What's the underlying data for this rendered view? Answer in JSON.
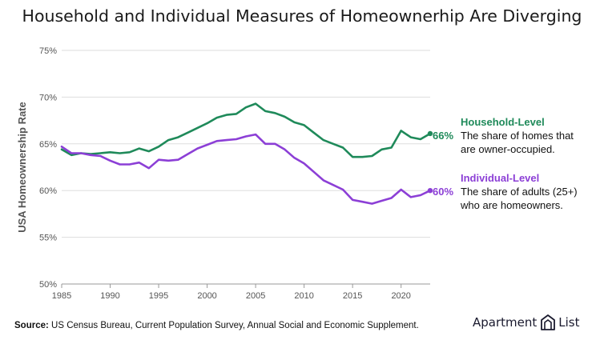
{
  "title": "Household and Individual Measures of Homeownerhip Are Diverging",
  "source": {
    "label": "Source:",
    "text": " US Census Bureau, Current Population Survey, Annual Social and Economic Supplement."
  },
  "brand": {
    "left": "Apartment",
    "right": "List",
    "icon": "building-outline-icon"
  },
  "colors": {
    "household": "#1f8a5a",
    "individual": "#8c3fd6",
    "grid": "#dddddd",
    "axis": "#555555"
  },
  "chart_data": {
    "type": "line",
    "ylabel": "USA Homeownership Rate",
    "xlabel": "",
    "xlim": [
      1985,
      2023
    ],
    "ylim": [
      50,
      75
    ],
    "xticks": [
      1985,
      1990,
      1995,
      2000,
      2005,
      2010,
      2015,
      2020
    ],
    "yticks": [
      50,
      55,
      60,
      65,
      70,
      75
    ],
    "ytick_labels": [
      "50%",
      "55%",
      "60%",
      "65%",
      "70%",
      "75%"
    ],
    "grid": "horizontal",
    "x": [
      1985,
      1986,
      1987,
      1988,
      1989,
      1990,
      1991,
      1992,
      1993,
      1994,
      1995,
      1996,
      1997,
      1998,
      1999,
      2000,
      2001,
      2002,
      2003,
      2004,
      2005,
      2006,
      2007,
      2008,
      2009,
      2010,
      2011,
      2012,
      2013,
      2014,
      2015,
      2016,
      2017,
      2018,
      2019,
      2020,
      2021,
      2022,
      2023
    ],
    "series": [
      {
        "name": "Household-Level",
        "values": [
          64.4,
          63.8,
          64.0,
          63.9,
          64.0,
          64.1,
          64.0,
          64.1,
          64.5,
          64.2,
          64.7,
          65.4,
          65.7,
          66.2,
          66.7,
          67.2,
          67.8,
          68.1,
          68.2,
          68.9,
          69.3,
          68.5,
          68.3,
          67.9,
          67.3,
          67.0,
          66.2,
          65.4,
          65.0,
          64.6,
          63.6,
          63.6,
          63.7,
          64.4,
          64.6,
          66.4,
          65.7,
          65.5,
          66.1
        ],
        "end_label": "66%",
        "description": "The share of homes that are owner-occupied."
      },
      {
        "name": "Individual-Level",
        "values": [
          64.7,
          64.0,
          64.0,
          63.8,
          63.7,
          63.2,
          62.8,
          62.8,
          63.0,
          62.4,
          63.3,
          63.2,
          63.3,
          63.9,
          64.5,
          64.9,
          65.3,
          65.4,
          65.5,
          65.8,
          66.0,
          65.0,
          65.0,
          64.4,
          63.5,
          62.9,
          62.0,
          61.1,
          60.6,
          60.1,
          59.0,
          58.8,
          58.6,
          58.9,
          59.2,
          60.1,
          59.3,
          59.5,
          60.0
        ],
        "end_label": "60%",
        "description": "The share of adults (25+) who are homeowners."
      }
    ]
  }
}
